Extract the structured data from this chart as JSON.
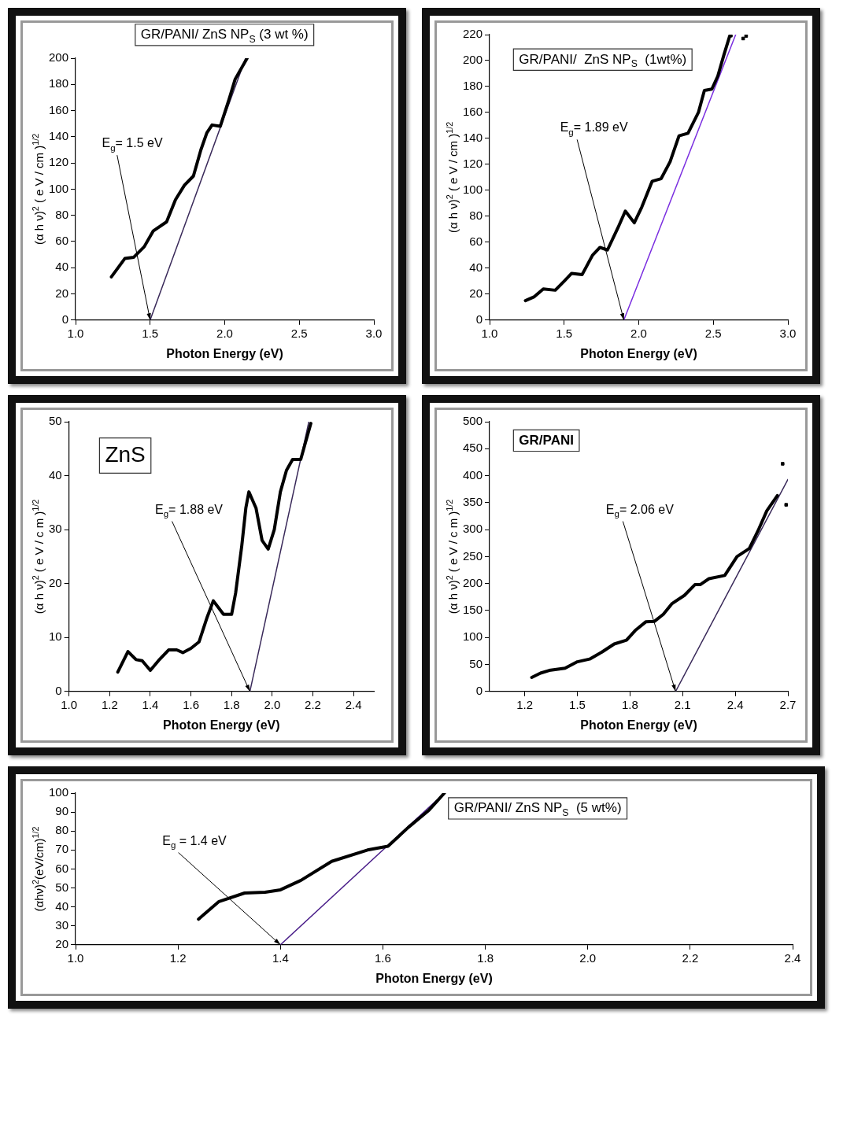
{
  "chart_data": [
    {
      "type": "line",
      "title": "GR/PANI/ ZnS NP$_{S}$ (3 wt %)",
      "xlabel": "Photon Energy (eV)",
      "ylabel": "(α h ν)$^{2}$ ( e V / cm )$^{1/2}$",
      "xlim": [
        1.0,
        3.0
      ],
      "xticks": [
        {
          "value": 1,
          "label": "1.0"
        },
        1.5,
        {
          "value": 2,
          "label": "2.0"
        },
        2.5,
        {
          "value": 3,
          "label": "3.0"
        }
      ],
      "ylim": [
        0,
        200
      ],
      "yticks": [
        0,
        20,
        40,
        60,
        80,
        100,
        120,
        140,
        160,
        180,
        200
      ],
      "grid": false,
      "legend": false,
      "marker": "none",
      "annotations": [
        {
          "text": "E$_{g}$= 1.5 eV",
          "x": 1.5,
          "y": 0
        }
      ],
      "series": [
        {
          "color": "#000000",
          "x": [
            1.24,
            1.33,
            1.39,
            1.46,
            1.52,
            1.61,
            1.67,
            1.73,
            1.79,
            1.84,
            1.88,
            1.915,
            1.97,
            2.03,
            2.07,
            2.15
          ],
          "values": [
            33,
            47,
            48,
            56,
            68,
            75,
            92,
            103,
            110,
            130,
            143,
            149,
            148,
            169,
            184,
            200
          ]
        },
        {
          "type": "line",
          "color": "#3a2a5a",
          "x": [
            1.5,
            2.14
          ],
          "values": [
            0,
            200
          ]
        }
      ]
    },
    {
      "type": "line",
      "title": "GR/PANI/  ZnS NP$_{S}$  (1wt%)",
      "xlabel": "Photon Energy (eV)",
      "ylabel": "(α h ν)$^{2}$ ( e V / cm )$^{1/2}$",
      "xlim": [
        1.0,
        3.0
      ],
      "xticks": [
        {
          "value": 1,
          "label": "1.0"
        },
        1.5,
        {
          "value": 2,
          "label": "2.0"
        },
        2.5,
        {
          "value": 3,
          "label": "3.0"
        }
      ],
      "ylim": [
        0,
        220
      ],
      "yticks": [
        0,
        20,
        40,
        60,
        80,
        100,
        120,
        140,
        160,
        180,
        200,
        220
      ],
      "grid": false,
      "legend": false,
      "marker": "none",
      "annotations": [
        {
          "text": "E$_{g}$= 1.89 eV",
          "x": 1.9,
          "y": 0
        }
      ],
      "series": [
        {
          "color": "#000000",
          "x": [
            1.24,
            1.3,
            1.36,
            1.44,
            1.5,
            1.55,
            1.62,
            1.69,
            1.74,
            1.79,
            1.86,
            1.91,
            1.97,
            2.02,
            2.09,
            2.15,
            2.21,
            2.27,
            2.33,
            2.4,
            2.44,
            2.49,
            2.53,
            2.57,
            2.61,
            2.62
          ],
          "values": [
            15,
            18,
            24,
            23,
            30,
            36,
            35,
            50,
            56,
            54,
            71,
            84,
            75,
            87,
            107,
            109,
            122,
            142,
            144,
            160,
            177,
            178,
            188,
            204,
            219,
            219
          ]
        },
        {
          "type": "scatter",
          "marker": "square",
          "color": "#000000",
          "x": [
            2.7,
            2.72
          ],
          "values": [
            217,
            219
          ]
        },
        {
          "type": "line",
          "color": "#7b2fe0",
          "x": [
            1.9,
            2.65
          ],
          "values": [
            0,
            220
          ]
        }
      ]
    },
    {
      "type": "line",
      "title": "ZnS",
      "xlabel": "Photon Energy (eV)",
      "ylabel": "(α h ν)$^{2}$ ( e V / c m )$^{1/2}$",
      "xlim": [
        1.0,
        2.5
      ],
      "xticks": [
        {
          "value": 1,
          "label": "1.0"
        },
        1.2,
        1.4,
        1.6,
        1.8,
        {
          "value": 2,
          "label": "2.0"
        },
        2.2,
        2.4
      ],
      "ylim": [
        0,
        50
      ],
      "yticks": [
        0,
        10,
        20,
        30,
        40,
        50
      ],
      "grid": false,
      "legend": false,
      "marker": "none",
      "annotations": [
        {
          "text": "E$_{g}$= 1.88 eV",
          "x": 1.89,
          "y": 0
        }
      ],
      "series": [
        {
          "color": "#000000",
          "x": [
            1.24,
            1.29,
            1.33,
            1.36,
            1.4,
            1.44,
            1.49,
            1.53,
            1.56,
            1.6,
            1.64,
            1.68,
            1.71,
            1.76,
            1.8,
            1.82,
            1.85,
            1.87,
            1.885,
            1.92,
            1.95,
            1.98,
            2.01,
            2.04,
            2.07,
            2.1,
            2.14,
            2.16,
            2.19
          ],
          "values": [
            3.6,
            7.4,
            5.9,
            5.7,
            3.9,
            5.7,
            7.7,
            7.7,
            7.2,
            8,
            9.2,
            13.8,
            16.8,
            14.3,
            14.3,
            18.3,
            27,
            34,
            37,
            34,
            28,
            26.4,
            30,
            37,
            41,
            43,
            43,
            45.7,
            49.7
          ]
        },
        {
          "type": "line",
          "color": "#3a2a5a",
          "x": [
            1.89,
            2.18
          ],
          "values": [
            0,
            50
          ]
        }
      ]
    },
    {
      "type": "line",
      "title": "GR/PANI",
      "xlabel": "Photon Energy (eV)",
      "ylabel": "(α h ν)$^{2}$ ( e V / c m )$^{1/2}$",
      "xlim": [
        1.0,
        2.7
      ],
      "xticks": [
        1.2,
        1.5,
        1.8,
        2.1,
        2.4,
        2.7
      ],
      "ylim": [
        0,
        500
      ],
      "yticks": [
        0,
        50,
        100,
        150,
        200,
        250,
        300,
        350,
        400,
        450,
        500
      ],
      "grid": false,
      "legend": false,
      "marker": "none",
      "annotations": [
        {
          "text": "E$_{g}$= 2.06 eV",
          "x": 2.06,
          "y": 0
        }
      ],
      "series": [
        {
          "color": "#000000",
          "x": [
            1.24,
            1.29,
            1.34,
            1.43,
            1.5,
            1.57,
            1.64,
            1.71,
            1.78,
            1.83,
            1.89,
            1.94,
            1.99,
            2.04,
            2.11,
            2.17,
            2.2,
            2.25,
            2.34,
            2.41,
            2.48,
            2.53,
            2.58,
            2.64
          ],
          "values": [
            26,
            34,
            39,
            43,
            55,
            60,
            73,
            88,
            95,
            113,
            129,
            130,
            143,
            163,
            178,
            198,
            198,
            209,
            215,
            250,
            265,
            298,
            335,
            363
          ]
        },
        {
          "type": "scatter",
          "marker": "square",
          "color": "#000000",
          "x": [
            2.67,
            2.69
          ],
          "values": [
            422,
            346
          ]
        },
        {
          "type": "line",
          "color": "#3a2a5a",
          "x": [
            2.06,
            2.7
          ],
          "values": [
            0,
            393
          ]
        }
      ]
    },
    {
      "type": "line",
      "title": "GR/PANI/ ZnS NP$_{S}$  (5 wt%)",
      "xlabel": "Photon Energy (eV)",
      "ylabel": "(αhν)$^{2}$(eV/cm)$^{1/2}$",
      "xlim": [
        1.0,
        2.4
      ],
      "xticks": [
        {
          "value": 1,
          "label": "1.0"
        },
        1.2,
        1.4,
        1.6,
        1.8,
        {
          "value": 2,
          "label": "2.0"
        },
        2.2,
        2.4
      ],
      "ylim": [
        20,
        100
      ],
      "yticks": [
        20,
        30,
        40,
        50,
        60,
        70,
        80,
        90,
        100
      ],
      "grid": false,
      "legend": false,
      "marker": "none",
      "annotations": [
        {
          "text": "E$_{g}$ = 1.4 eV",
          "x": 1.4,
          "y": 20
        }
      ],
      "series": [
        {
          "color": "#000000",
          "x": [
            1.24,
            1.28,
            1.33,
            1.37,
            1.4,
            1.44,
            1.5,
            1.57,
            1.61,
            1.65,
            1.69,
            1.72
          ],
          "values": [
            33.5,
            42.8,
            47.3,
            47.7,
            49,
            54,
            64,
            70,
            72,
            82,
            91,
            100
          ]
        },
        {
          "type": "line",
          "color": "#4b1f8a",
          "x": [
            1.4,
            1.72
          ],
          "values": [
            20,
            100
          ]
        }
      ]
    }
  ]
}
